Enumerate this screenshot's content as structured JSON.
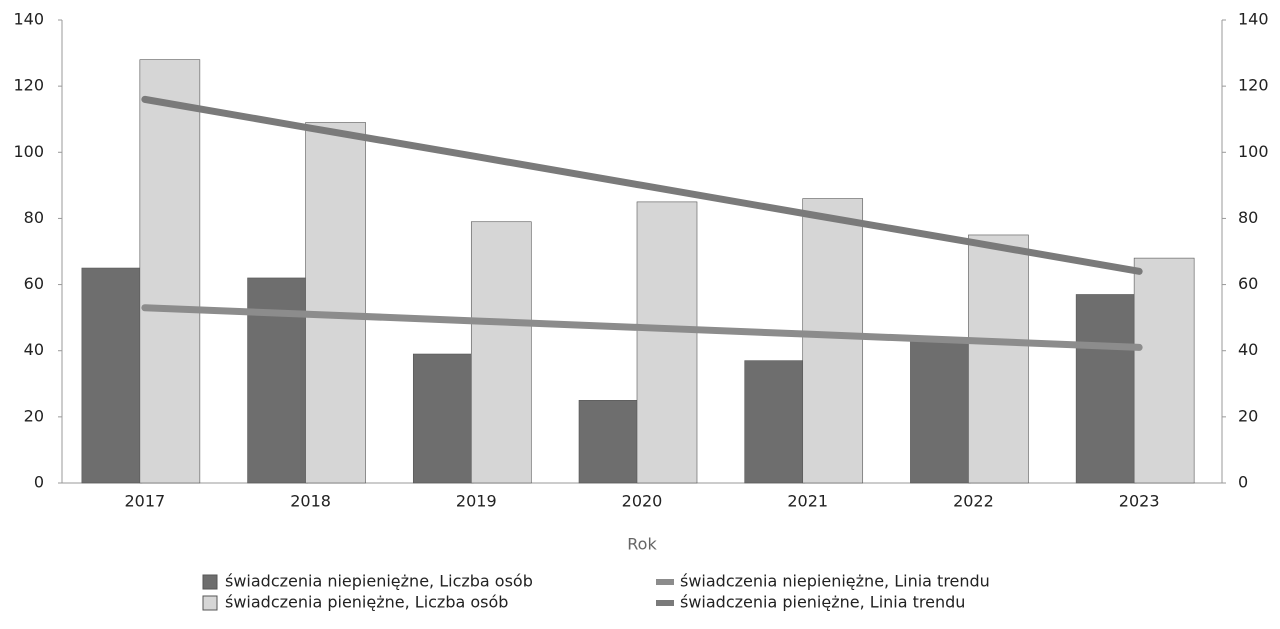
{
  "chart_data": {
    "type": "bar",
    "x_label": "Rok",
    "categories": [
      "2017",
      "2018",
      "2019",
      "2020",
      "2021",
      "2022",
      "2023"
    ],
    "series": [
      {
        "name": "świadczenia niepieniężne, Liczba osób",
        "type": "bar",
        "color": "#6e6e6e",
        "values": [
          65,
          62,
          39,
          25,
          37,
          43,
          57
        ]
      },
      {
        "name": "świadczenia pieniężne, Liczba osób",
        "type": "bar",
        "color": "#d6d6d6",
        "values": [
          128,
          109,
          79,
          85,
          86,
          75,
          68
        ]
      },
      {
        "name": "świadczenia niepieniężne, Linia trendu",
        "type": "line",
        "color": "#8c8c8c",
        "values": [
          53,
          51,
          49,
          47,
          45,
          43,
          41
        ]
      },
      {
        "name": "świadczenia pieniężne, Linia trendu",
        "type": "line",
        "color": "#7a7a7a",
        "values": [
          116,
          107.3,
          98.7,
          90,
          81.3,
          72.7,
          64
        ]
      }
    ],
    "ylim": [
      0,
      140
    ],
    "yticks": [
      0,
      20,
      40,
      60,
      80,
      100,
      120,
      140
    ],
    "y2lim": [
      0,
      140
    ],
    "y2ticks": [
      0,
      20,
      40,
      60,
      80,
      100,
      120,
      140
    ],
    "grid": false
  }
}
